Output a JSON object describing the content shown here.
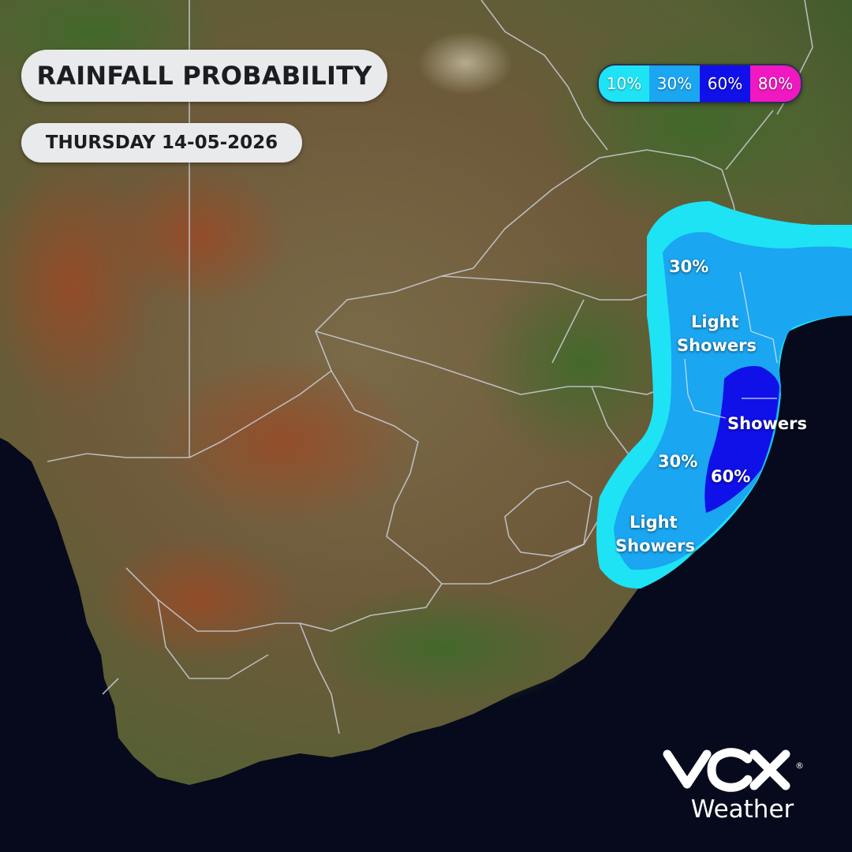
{
  "header": {
    "title": "RAINFALL PROBABILITY",
    "date": "THURSDAY 14-05-2026"
  },
  "legend": [
    {
      "label": "10%",
      "color": "#1ee3f5"
    },
    {
      "label": "30%",
      "color": "#1aa6f0"
    },
    {
      "label": "60%",
      "color": "#1010e8"
    },
    {
      "label": "80%",
      "color": "#f018c0"
    }
  ],
  "map_labels": {
    "north_probability": "30%",
    "north_light": "Light",
    "north_showers": "Showers",
    "coast_showers": "Showers",
    "south_probability": "30%",
    "coast_probability": "60%",
    "south_light": "Light",
    "south_showers": "Showers"
  },
  "logo": {
    "word": "Weather",
    "registered": "®"
  }
}
